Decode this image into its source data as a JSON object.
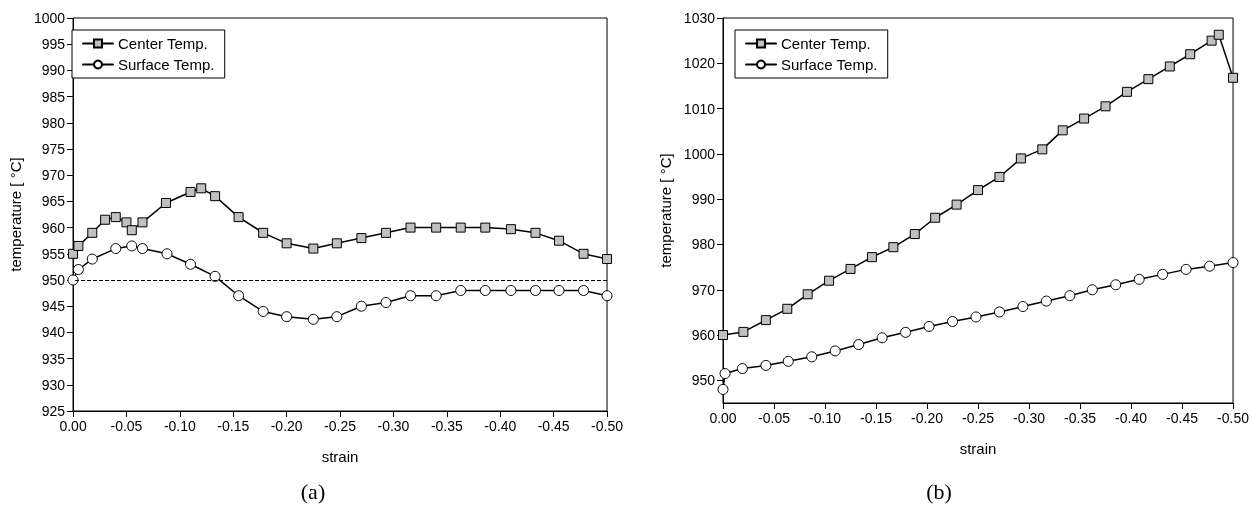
{
  "chart_data": [
    {
      "type": "line",
      "xlabel": "strain",
      "ylabel": "temperature [ °C]",
      "annotations": [
        "(a)"
      ],
      "legend": "top left",
      "line_style": "solid",
      "xlim": [
        0,
        -0.5
      ],
      "ylim": [
        925,
        1000
      ],
      "xticks": [
        {
          "value": 0,
          "label": "0.00"
        },
        {
          "value": -0.05,
          "label": "-0.05"
        },
        {
          "value": -0.1,
          "label": "-0.10"
        },
        {
          "value": -0.15,
          "label": "-0.15"
        },
        {
          "value": -0.2,
          "label": "-0.20"
        },
        {
          "value": -0.25,
          "label": "-0.25"
        },
        {
          "value": -0.3,
          "label": "-0.30"
        },
        {
          "value": -0.35,
          "label": "-0.35"
        },
        {
          "value": -0.4,
          "label": "-0.40"
        },
        {
          "value": -0.45,
          "label": "-0.45"
        },
        {
          "value": -0.5,
          "label": "-0.50"
        }
      ],
      "yticks": [
        925,
        930,
        935,
        940,
        945,
        950,
        955,
        960,
        965,
        970,
        975,
        980,
        985,
        990,
        995,
        1000
      ],
      "ref_lines": [
        {
          "axis": "y",
          "value": 950,
          "line_style": "dashed",
          "color": "#000000"
        }
      ],
      "series": [
        {
          "name": "Center Temp.",
          "color": "#c0c0c0",
          "marker": "square",
          "x": [
            0,
            -0.005,
            -0.018,
            -0.03,
            -0.04,
            -0.05,
            -0.055,
            -0.065,
            -0.087,
            -0.11,
            -0.12,
            -0.133,
            -0.155,
            -0.178,
            -0.2,
            -0.225,
            -0.247,
            -0.27,
            -0.293,
            -0.316,
            -0.34,
            -0.363,
            -0.386,
            -0.41,
            -0.433,
            -0.455,
            -0.478,
            -0.5
          ],
          "values": [
            955,
            956.5,
            959,
            961.5,
            962,
            961,
            959.5,
            961,
            964.7,
            966.8,
            967.5,
            966,
            962,
            959,
            957,
            956,
            957,
            958,
            959,
            960,
            960,
            960,
            960,
            959.7,
            959,
            957.5,
            955,
            954
          ]
        },
        {
          "name": "Surface Temp.",
          "color": "#ffffff",
          "marker": "circle",
          "x": [
            0,
            -0.005,
            -0.018,
            -0.04,
            -0.055,
            -0.065,
            -0.088,
            -0.11,
            -0.133,
            -0.155,
            -0.178,
            -0.2,
            -0.225,
            -0.247,
            -0.27,
            -0.293,
            -0.316,
            -0.34,
            -0.363,
            -0.386,
            -0.41,
            -0.433,
            -0.455,
            -0.478,
            -0.5
          ],
          "values": [
            950,
            952,
            954,
            956,
            956.5,
            956,
            955,
            953,
            950.7,
            947,
            944,
            943,
            942.5,
            943,
            945,
            945.7,
            947,
            947,
            948,
            948,
            948,
            948,
            948,
            948,
            947
          ]
        }
      ]
    },
    {
      "type": "line",
      "xlabel": "strain",
      "ylabel": "temperature [ °C]",
      "annotations": [
        "(b)"
      ],
      "legend": "top left",
      "line_style": "solid",
      "xlim": [
        0,
        -0.5
      ],
      "ylim": [
        945,
        1030
      ],
      "xticks": [
        {
          "value": 0,
          "label": "0.00"
        },
        {
          "value": -0.05,
          "label": "-0.05"
        },
        {
          "value": -0.1,
          "label": "-0.10"
        },
        {
          "value": -0.15,
          "label": "-0.15"
        },
        {
          "value": -0.2,
          "label": "-0.20"
        },
        {
          "value": -0.25,
          "label": "-0.25"
        },
        {
          "value": -0.3,
          "label": "-0.30"
        },
        {
          "value": -0.35,
          "label": "-0.35"
        },
        {
          "value": -0.4,
          "label": "-0.40"
        },
        {
          "value": -0.45,
          "label": "-0.45"
        },
        {
          "value": -0.5,
          "label": "-0.50"
        }
      ],
      "yticks": [
        950,
        960,
        970,
        980,
        990,
        1000,
        1010,
        1020,
        1030
      ],
      "series": [
        {
          "name": "Center Temp.",
          "color": "#c0c0c0",
          "marker": "square",
          "x": [
            0,
            -0.02,
            -0.042,
            -0.063,
            -0.083,
            -0.104,
            -0.125,
            -0.146,
            -0.167,
            -0.188,
            -0.208,
            -0.229,
            -0.25,
            -0.271,
            -0.292,
            -0.313,
            -0.333,
            -0.354,
            -0.375,
            -0.396,
            -0.417,
            -0.438,
            -0.458,
            -0.479,
            -0.486,
            -0.5
          ],
          "values": [
            960,
            960.7,
            963.3,
            965.8,
            969,
            972,
            974.6,
            977.2,
            979.4,
            982.3,
            985.9,
            988.8,
            992,
            994.9,
            999,
            1001,
            1005.2,
            1007.8,
            1010.5,
            1013.7,
            1016.5,
            1019.3,
            1022,
            1025,
            1026.3,
            1016.8
          ]
        },
        {
          "name": "Surface Temp.",
          "color": "#ffffff",
          "marker": "circle",
          "x": [
            0,
            -0.002,
            -0.019,
            -0.042,
            -0.064,
            -0.087,
            -0.11,
            -0.133,
            -0.156,
            -0.179,
            -0.202,
            -0.225,
            -0.248,
            -0.271,
            -0.294,
            -0.317,
            -0.34,
            -0.362,
            -0.385,
            -0.408,
            -0.431,
            -0.454,
            -0.477,
            -0.5
          ],
          "values": [
            948,
            951.5,
            952.6,
            953.3,
            954.2,
            955.2,
            956.5,
            957.9,
            959.4,
            960.6,
            961.9,
            963,
            964,
            965.1,
            966.3,
            967.5,
            968.7,
            970,
            971.1,
            972.3,
            973.4,
            974.5,
            975.2,
            976
          ]
        }
      ]
    }
  ]
}
